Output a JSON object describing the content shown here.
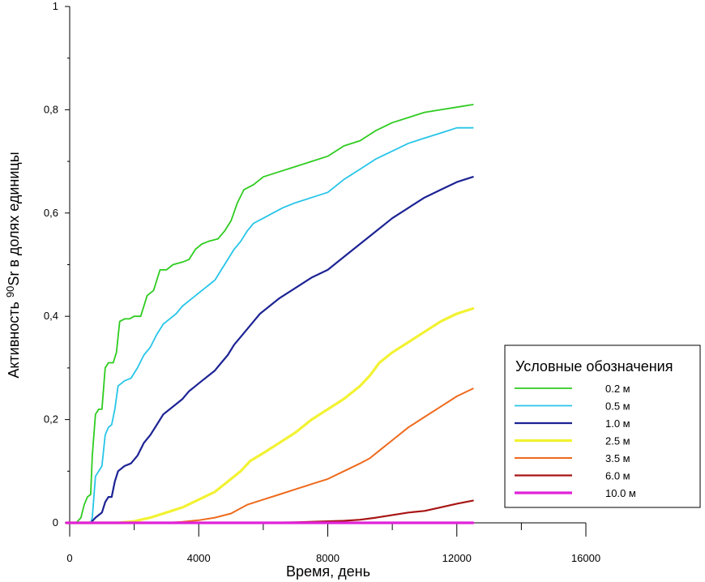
{
  "chart_data": {
    "type": "line",
    "title": "",
    "xlabel": "Время, день",
    "ylabel": "Активность 90Sr в долях единицы",
    "ylabel_prefix": "Активность ",
    "ylabel_sup": "90",
    "ylabel_suffix": "Sr в долях единицы",
    "xlim": [
      0,
      16000
    ],
    "ylim": [
      0,
      1
    ],
    "x_ticks": [
      0,
      4000,
      8000,
      12000,
      16000
    ],
    "x_tick_labels": [
      "0",
      "4000",
      "8000",
      "12000",
      "16000"
    ],
    "y_ticks": [
      0,
      0.2,
      0.4,
      0.6,
      0.8,
      1
    ],
    "y_tick_labels": [
      "0",
      "0,2",
      "0,4",
      "0,6",
      "0,8",
      "1"
    ],
    "grid": false,
    "legend": {
      "title": "Условные обозначения",
      "placement": "right"
    },
    "series": [
      {
        "name": "0.2 м",
        "color": "#2ecc1f",
        "points": [
          [
            -100,
            0
          ],
          [
            200,
            0
          ],
          [
            350,
            0.01
          ],
          [
            450,
            0.035
          ],
          [
            550,
            0.05
          ],
          [
            650,
            0.055
          ],
          [
            700,
            0.13
          ],
          [
            800,
            0.21
          ],
          [
            900,
            0.22
          ],
          [
            1000,
            0.22
          ],
          [
            1100,
            0.3
          ],
          [
            1200,
            0.31
          ],
          [
            1350,
            0.31
          ],
          [
            1450,
            0.33
          ],
          [
            1550,
            0.39
          ],
          [
            1700,
            0.395
          ],
          [
            1850,
            0.395
          ],
          [
            2000,
            0.4
          ],
          [
            2200,
            0.4
          ],
          [
            2400,
            0.44
          ],
          [
            2600,
            0.45
          ],
          [
            2800,
            0.49
          ],
          [
            3000,
            0.49
          ],
          [
            3200,
            0.5
          ],
          [
            3500,
            0.505
          ],
          [
            3700,
            0.51
          ],
          [
            3900,
            0.53
          ],
          [
            4100,
            0.54
          ],
          [
            4300,
            0.545
          ],
          [
            4600,
            0.55
          ],
          [
            4800,
            0.565
          ],
          [
            5000,
            0.585
          ],
          [
            5200,
            0.62
          ],
          [
            5400,
            0.645
          ],
          [
            5700,
            0.655
          ],
          [
            6000,
            0.67
          ],
          [
            6500,
            0.68
          ],
          [
            7000,
            0.69
          ],
          [
            7500,
            0.7
          ],
          [
            8000,
            0.71
          ],
          [
            8500,
            0.73
          ],
          [
            9000,
            0.74
          ],
          [
            9500,
            0.76
          ],
          [
            10000,
            0.775
          ],
          [
            10500,
            0.785
          ],
          [
            11000,
            0.795
          ],
          [
            11500,
            0.8
          ],
          [
            12000,
            0.805
          ],
          [
            12500,
            0.81
          ]
        ]
      },
      {
        "name": "0.5 м",
        "color": "#27c5e8",
        "points": [
          [
            -100,
            0
          ],
          [
            650,
            0
          ],
          [
            700,
            0.01
          ],
          [
            800,
            0.09
          ],
          [
            900,
            0.1
          ],
          [
            1000,
            0.11
          ],
          [
            1100,
            0.17
          ],
          [
            1200,
            0.185
          ],
          [
            1300,
            0.19
          ],
          [
            1400,
            0.22
          ],
          [
            1500,
            0.265
          ],
          [
            1700,
            0.275
          ],
          [
            1900,
            0.28
          ],
          [
            2100,
            0.3
          ],
          [
            2300,
            0.325
          ],
          [
            2500,
            0.34
          ],
          [
            2700,
            0.365
          ],
          [
            2900,
            0.385
          ],
          [
            3100,
            0.395
          ],
          [
            3300,
            0.405
          ],
          [
            3500,
            0.42
          ],
          [
            3700,
            0.43
          ],
          [
            3900,
            0.44
          ],
          [
            4100,
            0.45
          ],
          [
            4300,
            0.46
          ],
          [
            4500,
            0.47
          ],
          [
            4700,
            0.49
          ],
          [
            4900,
            0.51
          ],
          [
            5100,
            0.53
          ],
          [
            5300,
            0.545
          ],
          [
            5500,
            0.565
          ],
          [
            5700,
            0.58
          ],
          [
            6000,
            0.59
          ],
          [
            6300,
            0.6
          ],
          [
            6600,
            0.61
          ],
          [
            7000,
            0.62
          ],
          [
            7500,
            0.63
          ],
          [
            8000,
            0.64
          ],
          [
            8500,
            0.665
          ],
          [
            9000,
            0.685
          ],
          [
            9500,
            0.705
          ],
          [
            10000,
            0.72
          ],
          [
            10500,
            0.735
          ],
          [
            11000,
            0.745
          ],
          [
            11500,
            0.755
          ],
          [
            12000,
            0.765
          ],
          [
            12500,
            0.765
          ]
        ]
      },
      {
        "name": "1.0 м",
        "color": "#1c2394",
        "points": [
          [
            -100,
            0
          ],
          [
            650,
            0
          ],
          [
            800,
            0.01
          ],
          [
            1000,
            0.02
          ],
          [
            1100,
            0.04
          ],
          [
            1200,
            0.05
          ],
          [
            1300,
            0.05
          ],
          [
            1400,
            0.08
          ],
          [
            1500,
            0.1
          ],
          [
            1700,
            0.11
          ],
          [
            1900,
            0.115
          ],
          [
            2100,
            0.13
          ],
          [
            2300,
            0.155
          ],
          [
            2500,
            0.17
          ],
          [
            2700,
            0.19
          ],
          [
            2900,
            0.21
          ],
          [
            3100,
            0.22
          ],
          [
            3300,
            0.23
          ],
          [
            3500,
            0.24
          ],
          [
            3700,
            0.255
          ],
          [
            3900,
            0.265
          ],
          [
            4100,
            0.275
          ],
          [
            4300,
            0.285
          ],
          [
            4500,
            0.295
          ],
          [
            4700,
            0.31
          ],
          [
            4900,
            0.325
          ],
          [
            5100,
            0.345
          ],
          [
            5300,
            0.36
          ],
          [
            5500,
            0.375
          ],
          [
            5700,
            0.39
          ],
          [
            5900,
            0.405
          ],
          [
            6200,
            0.42
          ],
          [
            6500,
            0.435
          ],
          [
            7000,
            0.455
          ],
          [
            7500,
            0.475
          ],
          [
            8000,
            0.49
          ],
          [
            8500,
            0.515
          ],
          [
            9000,
            0.54
          ],
          [
            9500,
            0.565
          ],
          [
            10000,
            0.59
          ],
          [
            10500,
            0.61
          ],
          [
            11000,
            0.63
          ],
          [
            11500,
            0.645
          ],
          [
            12000,
            0.66
          ],
          [
            12500,
            0.67
          ]
        ]
      },
      {
        "name": "2.5 м",
        "color": "#f2f233",
        "points": [
          [
            -100,
            0
          ],
          [
            1500,
            0
          ],
          [
            2000,
            0.003
          ],
          [
            2500,
            0.01
          ],
          [
            3000,
            0.02
          ],
          [
            3500,
            0.03
          ],
          [
            4000,
            0.045
          ],
          [
            4500,
            0.06
          ],
          [
            5000,
            0.085
          ],
          [
            5300,
            0.1
          ],
          [
            5600,
            0.12
          ],
          [
            6000,
            0.135
          ],
          [
            6500,
            0.155
          ],
          [
            7000,
            0.175
          ],
          [
            7500,
            0.2
          ],
          [
            8000,
            0.22
          ],
          [
            8500,
            0.24
          ],
          [
            9000,
            0.265
          ],
          [
            9300,
            0.285
          ],
          [
            9600,
            0.31
          ],
          [
            10000,
            0.33
          ],
          [
            10500,
            0.35
          ],
          [
            11000,
            0.37
          ],
          [
            11500,
            0.39
          ],
          [
            12000,
            0.405
          ],
          [
            12500,
            0.415
          ]
        ]
      },
      {
        "name": "3.5 м",
        "color": "#ee6a1c",
        "points": [
          [
            -100,
            0
          ],
          [
            3000,
            0
          ],
          [
            3500,
            0.002
          ],
          [
            4000,
            0.005
          ],
          [
            4500,
            0.01
          ],
          [
            5000,
            0.018
          ],
          [
            5500,
            0.035
          ],
          [
            6000,
            0.045
          ],
          [
            6500,
            0.055
          ],
          [
            7000,
            0.065
          ],
          [
            7500,
            0.075
          ],
          [
            8000,
            0.085
          ],
          [
            8500,
            0.1
          ],
          [
            9000,
            0.115
          ],
          [
            9300,
            0.125
          ],
          [
            9600,
            0.14
          ],
          [
            10000,
            0.16
          ],
          [
            10500,
            0.185
          ],
          [
            11000,
            0.205
          ],
          [
            11500,
            0.225
          ],
          [
            12000,
            0.245
          ],
          [
            12500,
            0.26
          ]
        ]
      },
      {
        "name": "6.0 м",
        "color": "#a81414",
        "points": [
          [
            -100,
            0
          ],
          [
            6000,
            0
          ],
          [
            7000,
            0.001
          ],
          [
            8000,
            0.003
          ],
          [
            8500,
            0.004
          ],
          [
            9000,
            0.006
          ],
          [
            9500,
            0.01
          ],
          [
            10000,
            0.015
          ],
          [
            10500,
            0.02
          ],
          [
            11000,
            0.023
          ],
          [
            11500,
            0.03
          ],
          [
            12000,
            0.037
          ],
          [
            12500,
            0.043
          ]
        ]
      },
      {
        "name": "10.0 м",
        "color": "#e023d8",
        "points": [
          [
            -100,
            0
          ],
          [
            12500,
            0
          ]
        ]
      }
    ]
  }
}
